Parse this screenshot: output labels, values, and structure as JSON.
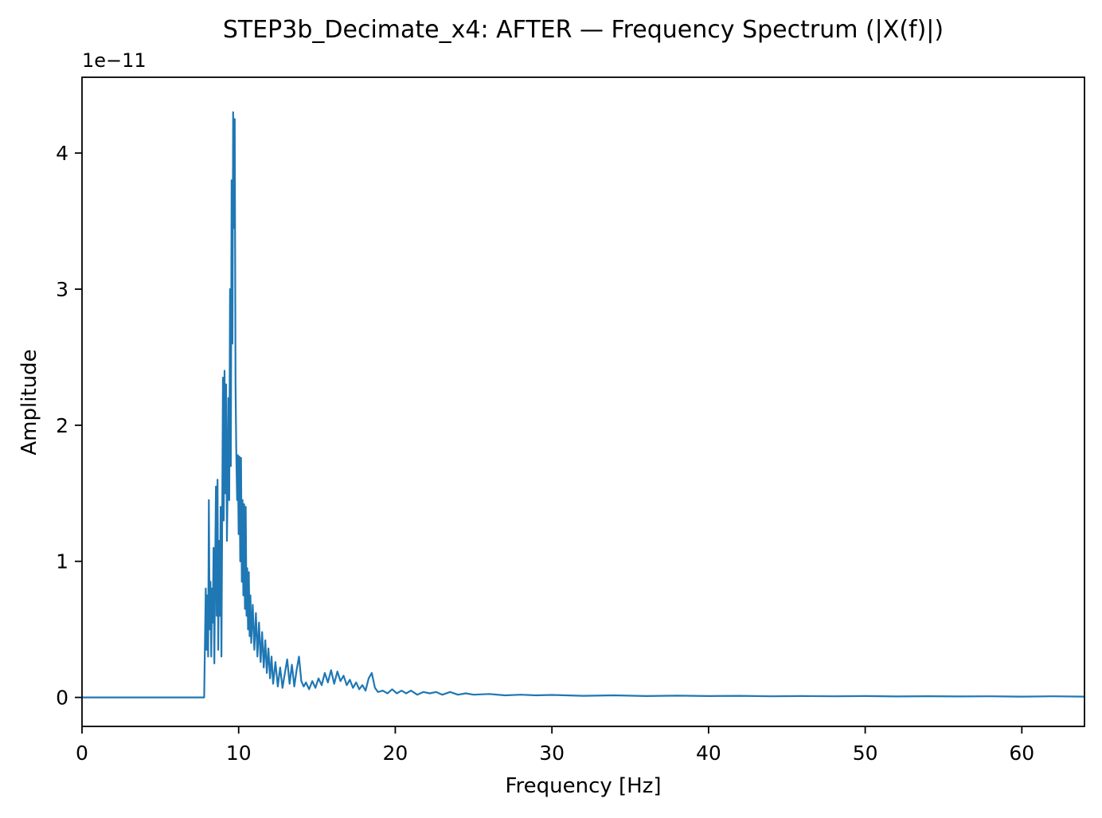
{
  "chart_data": {
    "type": "line",
    "title": "STEP3b_Decimate_x4: AFTER — Frequency Spectrum (|X(f)|)",
    "xlabel": "Frequency [Hz]",
    "ylabel": "Amplitude",
    "y_offset_text": "1e−11",
    "y_scale_factor": 1e-11,
    "xlim": [
      0,
      64
    ],
    "ylim": [
      -0.213,
      4.557
    ],
    "xticks": [
      0,
      10,
      20,
      30,
      40,
      50,
      60
    ],
    "yticks": [
      0,
      1,
      2,
      3,
      4
    ],
    "grid": false,
    "legend": null,
    "line_color": "#1f77b4",
    "series": [
      {
        "name": "|X(f)|",
        "points": [
          [
            0,
            0
          ],
          [
            2,
            0
          ],
          [
            4,
            0
          ],
          [
            6,
            0
          ],
          [
            7.5,
            0
          ],
          [
            7.8,
            0
          ],
          [
            7.85,
            0.4
          ],
          [
            7.9,
            0.8
          ],
          [
            7.95,
            0.35
          ],
          [
            8.0,
            0.75
          ],
          [
            8.05,
            0.3
          ],
          [
            8.1,
            1.45
          ],
          [
            8.15,
            0.5
          ],
          [
            8.2,
            0.85
          ],
          [
            8.25,
            0.3
          ],
          [
            8.3,
            0.8
          ],
          [
            8.35,
            0.55
          ],
          [
            8.4,
            1.1
          ],
          [
            8.45,
            0.25
          ],
          [
            8.5,
            0.95
          ],
          [
            8.55,
            1.55
          ],
          [
            8.6,
            0.6
          ],
          [
            8.65,
            1.6
          ],
          [
            8.7,
            0.35
          ],
          [
            8.75,
            1.15
          ],
          [
            8.8,
            0.6
          ],
          [
            8.85,
            1.4
          ],
          [
            8.9,
            0.3
          ],
          [
            8.95,
            1.35
          ],
          [
            9.0,
            2.35
          ],
          [
            9.05,
            1.3
          ],
          [
            9.1,
            2.4
          ],
          [
            9.15,
            1.5
          ],
          [
            9.2,
            2.3
          ],
          [
            9.25,
            1.15
          ],
          [
            9.3,
            1.55
          ],
          [
            9.35,
            2.2
          ],
          [
            9.4,
            1.45
          ],
          [
            9.45,
            3.0
          ],
          [
            9.5,
            1.7
          ],
          [
            9.55,
            3.8
          ],
          [
            9.6,
            2.6
          ],
          [
            9.65,
            4.3
          ],
          [
            9.7,
            3.45
          ],
          [
            9.75,
            4.25
          ],
          [
            9.8,
            2.3
          ],
          [
            9.85,
            1.78
          ],
          [
            9.9,
            1.45
          ],
          [
            9.95,
            1.78
          ],
          [
            10.0,
            1.2
          ],
          [
            10.05,
            1.77
          ],
          [
            10.1,
            1.0
          ],
          [
            10.15,
            1.76
          ],
          [
            10.2,
            0.85
          ],
          [
            10.25,
            1.45
          ],
          [
            10.3,
            0.75
          ],
          [
            10.35,
            1.42
          ],
          [
            10.4,
            0.65
          ],
          [
            10.45,
            1.4
          ],
          [
            10.5,
            0.6
          ],
          [
            10.55,
            0.95
          ],
          [
            10.6,
            0.5
          ],
          [
            10.65,
            0.92
          ],
          [
            10.7,
            0.45
          ],
          [
            10.75,
            0.75
          ],
          [
            10.8,
            0.4
          ],
          [
            10.9,
            0.68
          ],
          [
            11.0,
            0.35
          ],
          [
            11.1,
            0.62
          ],
          [
            11.2,
            0.3
          ],
          [
            11.3,
            0.55
          ],
          [
            11.4,
            0.26
          ],
          [
            11.5,
            0.48
          ],
          [
            11.6,
            0.22
          ],
          [
            11.7,
            0.42
          ],
          [
            11.8,
            0.18
          ],
          [
            11.9,
            0.36
          ],
          [
            12.0,
            0.14
          ],
          [
            12.1,
            0.3
          ],
          [
            12.2,
            0.1
          ],
          [
            12.35,
            0.26
          ],
          [
            12.5,
            0.08
          ],
          [
            12.65,
            0.22
          ],
          [
            12.8,
            0.07
          ],
          [
            12.95,
            0.18
          ],
          [
            13.1,
            0.28
          ],
          [
            13.25,
            0.1
          ],
          [
            13.4,
            0.24
          ],
          [
            13.55,
            0.08
          ],
          [
            13.7,
            0.2
          ],
          [
            13.85,
            0.3
          ],
          [
            14.0,
            0.12
          ],
          [
            14.15,
            0.08
          ],
          [
            14.3,
            0.11
          ],
          [
            14.5,
            0.06
          ],
          [
            14.7,
            0.12
          ],
          [
            14.9,
            0.07
          ],
          [
            15.1,
            0.14
          ],
          [
            15.3,
            0.09
          ],
          [
            15.5,
            0.18
          ],
          [
            15.7,
            0.11
          ],
          [
            15.9,
            0.2
          ],
          [
            16.1,
            0.1
          ],
          [
            16.3,
            0.19
          ],
          [
            16.5,
            0.12
          ],
          [
            16.7,
            0.16
          ],
          [
            16.9,
            0.09
          ],
          [
            17.1,
            0.13
          ],
          [
            17.3,
            0.07
          ],
          [
            17.5,
            0.11
          ],
          [
            17.7,
            0.06
          ],
          [
            17.9,
            0.09
          ],
          [
            18.1,
            0.05
          ],
          [
            18.3,
            0.14
          ],
          [
            18.5,
            0.18
          ],
          [
            18.7,
            0.07
          ],
          [
            18.9,
            0.04
          ],
          [
            19.2,
            0.05
          ],
          [
            19.5,
            0.03
          ],
          [
            19.8,
            0.06
          ],
          [
            20.1,
            0.03
          ],
          [
            20.4,
            0.05
          ],
          [
            20.7,
            0.03
          ],
          [
            21.0,
            0.05
          ],
          [
            21.4,
            0.02
          ],
          [
            21.8,
            0.04
          ],
          [
            22.2,
            0.03
          ],
          [
            22.6,
            0.04
          ],
          [
            23.0,
            0.02
          ],
          [
            23.5,
            0.04
          ],
          [
            24.0,
            0.02
          ],
          [
            24.5,
            0.03
          ],
          [
            25.0,
            0.02
          ],
          [
            26.0,
            0.025
          ],
          [
            27.0,
            0.015
          ],
          [
            28.0,
            0.02
          ],
          [
            29.0,
            0.015
          ],
          [
            30.0,
            0.018
          ],
          [
            32,
            0.012
          ],
          [
            34,
            0.015
          ],
          [
            36,
            0.01
          ],
          [
            38,
            0.013
          ],
          [
            40,
            0.01
          ],
          [
            42,
            0.012
          ],
          [
            44,
            0.008
          ],
          [
            46,
            0.01
          ],
          [
            48,
            0.008
          ],
          [
            50,
            0.01
          ],
          [
            52,
            0.007
          ],
          [
            54,
            0.009
          ],
          [
            56,
            0.007
          ],
          [
            58,
            0.008
          ],
          [
            60,
            0.006
          ],
          [
            62,
            0.008
          ],
          [
            64,
            0.006
          ]
        ]
      }
    ]
  }
}
